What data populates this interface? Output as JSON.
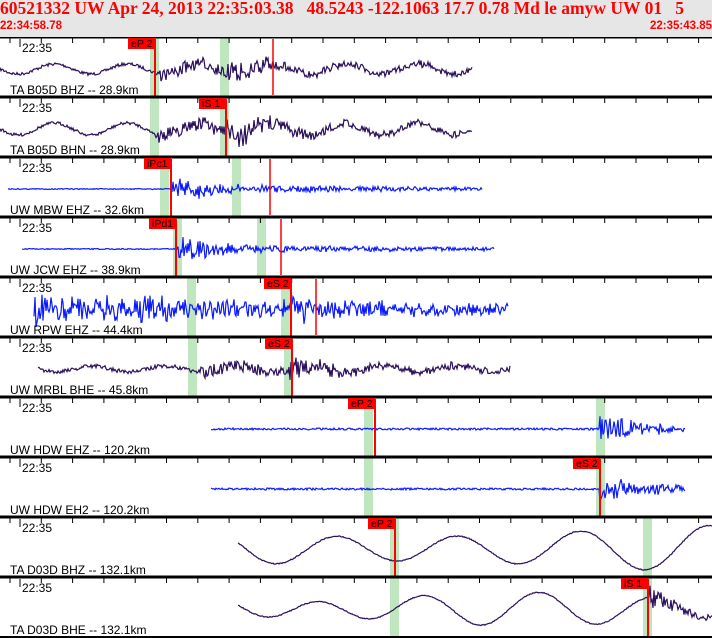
{
  "header": {
    "title": "60521332 UW Apr 24, 2013 22:35:03.38   48.5243 -122.1063 17.7 0.78 Md le amyw UW 01   5",
    "start_time": "22:34:58.78",
    "end_time": "22:35:43.85"
  },
  "colors": {
    "pick": "#ff0000",
    "band": "#bfe6bf",
    "dark_trace": "#2b0f5c",
    "blue_trace": "#0a1aff"
  },
  "panels": [
    {
      "time_label": "22:35",
      "station": "TA B05D BHZ -- 28.9km",
      "picks": [
        {
          "label": "eP 2"
        }
      ],
      "trace": "dark"
    },
    {
      "time_label": "22:35",
      "station": "TA B05D BHN -- 28.9km",
      "picks": [
        {
          "label": "iS 1"
        }
      ],
      "trace": "dark"
    },
    {
      "time_label": "22:35",
      "station": "UW MBW EHZ -- 32.6km",
      "picks": [
        {
          "label": "iPc1"
        }
      ],
      "trace": "blue"
    },
    {
      "time_label": "22:35",
      "station": "UW JCW EHZ -- 38.9km",
      "picks": [
        {
          "label": "iPd1"
        }
      ],
      "trace": "blue"
    },
    {
      "time_label": "22:35",
      "station": "UW RPW EHZ -- 44.4km",
      "picks": [
        {
          "label": "eS 2"
        }
      ],
      "trace": "blue"
    },
    {
      "time_label": "22:35",
      "station": "UW MRBL BHE -- 45.8km",
      "picks": [
        {
          "label": "eS 2"
        }
      ],
      "trace": "dark"
    },
    {
      "time_label": "22:35",
      "station": "UW HDW EHZ -- 120.2km",
      "picks": [
        {
          "label": "eP 2"
        }
      ],
      "trace": "blue"
    },
    {
      "time_label": "22:35",
      "station": "UW HDW EH2 -- 120.2km",
      "picks": [
        {
          "label": "eS 2"
        }
      ],
      "trace": "blue"
    },
    {
      "time_label": "22:35",
      "station": "TA D03D BHZ -- 132.1km",
      "picks": [
        {
          "label": "eP 2"
        }
      ],
      "trace": "dark"
    },
    {
      "time_label": "22:35",
      "station": "TA D03D BHE -- 132.1km",
      "picks": [
        {
          "label": "iS 1"
        }
      ],
      "trace": "dark"
    }
  ]
}
